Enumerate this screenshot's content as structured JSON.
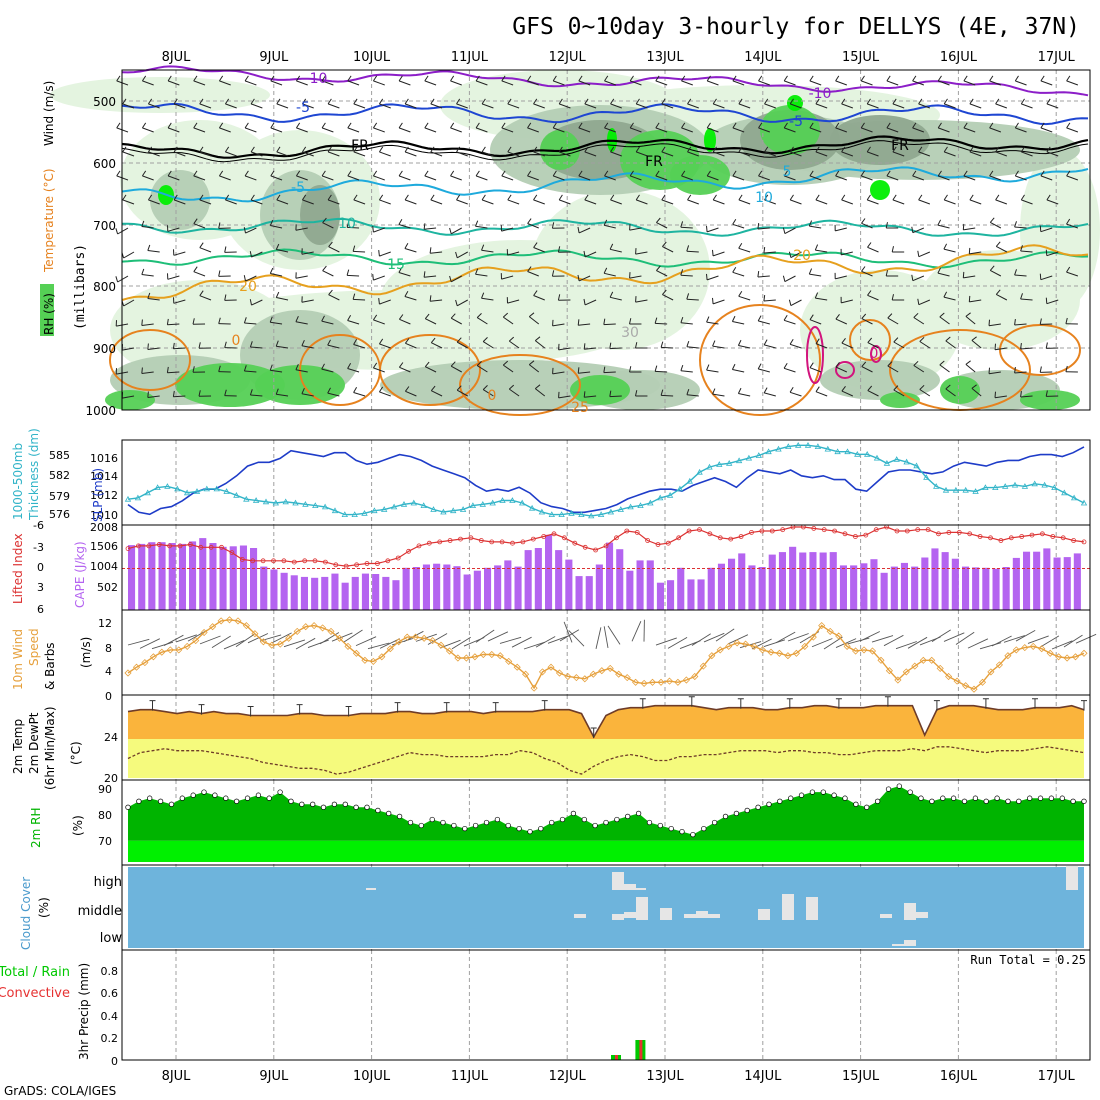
{
  "title": "GFS 0~10day 3-hourly for DELLYS (4E, 37N)",
  "credit": "GrADS: COLA/IGES",
  "date_labels": [
    "8JUL",
    "9JUL",
    "10JUL",
    "11JUL",
    "12JUL",
    "13JUL",
    "14JUL",
    "15JUL",
    "16JUL",
    "17JUL"
  ],
  "colors": {
    "frame": "#000000",
    "grid": "#a0a0a0",
    "rh_light": "#e4f4e0",
    "rh_mid": "#b4ceb4",
    "rh_dark": "#8fa88f",
    "rh_green": "#55d055",
    "rh_bright": "#00ee00",
    "iso_purple": "#8c1ec8",
    "iso_blue": "#1e46d2",
    "iso_fr": "#000000",
    "iso_cyan": "#1eaadc",
    "iso_teal": "#1eb4a0",
    "iso_green": "#1ebe78",
    "iso_orange": "#e6a01e",
    "iso_dark_orange": "#e6821e",
    "iso_magenta": "#d2147d",
    "slp": "#1e3cc8",
    "thickness": "#32b4c8",
    "lifted": "#dc3232",
    "cape": "#b464f0",
    "wind_speed": "#e6a03c",
    "temp_fill": "#fab43c",
    "dew_fill": "#f5fa7d",
    "rh_dark_green": "#00b400",
    "rh_bright_green": "#00f000",
    "cloud_bg": "#6eb4dc",
    "cloud_bar": "#e6e6e6",
    "precip_total": "#00c800",
    "precip_conv": "#e63232"
  },
  "panels": {
    "upper_air": {
      "ylabels": [
        "RH (%)",
        "Temperature (°C)",
        "Wind (m/s)"
      ],
      "ylabel2": "(millibars)",
      "yticks": [
        "500",
        "600",
        "700",
        "800",
        "900",
        "1000"
      ],
      "contour_labels": [
        "-10",
        "-5",
        "FR",
        "-5",
        "10",
        "15",
        "20",
        "0",
        "0",
        "25",
        "30",
        "-10",
        "-5",
        "FR",
        "5",
        "10",
        "20",
        "FR",
        "0"
      ]
    },
    "slp": {
      "ylabel_left": "1000-500mb",
      "ylabel_left2": "Thickness (dm)",
      "ylabel_right": "SLP (mb)",
      "yticks_left": [
        "585",
        "582",
        "579",
        "576"
      ],
      "yticks_right": [
        "1016",
        "1014",
        "1012",
        "1010"
      ]
    },
    "cape": {
      "ylabel_left": "Lifted Index",
      "ylabel_right": "CAPE (J/kg)",
      "yticks_left": [
        "-6",
        "-3",
        "0",
        "3",
        "6"
      ],
      "yticks_right": [
        "2008",
        "1506",
        "1004",
        "502"
      ]
    },
    "wind10": {
      "ylabel_1": "10m Wind",
      "ylabel_2": "Speed",
      "ylabel_3": "& Barbs",
      "ylabel_4": "(m/s)",
      "yticks": [
        "12",
        "8",
        "4",
        "0"
      ]
    },
    "temp2m": {
      "ylabel_1": "2m Temp",
      "ylabel_2": "2m DewPt",
      "ylabel_3": "(6hr Min/Max)",
      "ylabel_4": "(°C)",
      "yticks": [
        "24",
        "20"
      ]
    },
    "rh2m": {
      "ylabel_1": "2m RH",
      "ylabel_2": "(%)",
      "yticks": [
        "90",
        "80",
        "70"
      ]
    },
    "cloud": {
      "ylabel_1": "Cloud Cover",
      "ylabel_2": "(%)",
      "yticks": [
        "high",
        "middle",
        "low"
      ]
    },
    "precip": {
      "ylabel_1": "Total / Rain",
      "ylabel_2": "Convective",
      "ylabel_3": "3hr Precip (mm)",
      "yticks": [
        "0.8",
        "0.6",
        "0.4",
        "0.2",
        "0"
      ],
      "run_total": "Run Total = 0.25"
    }
  },
  "chart_data": [
    {
      "type": "line",
      "title": "SLP (mb)",
      "x_unit": "3-hourly step from 7JUL 12Z",
      "values": [
        1011.2,
        1010.4,
        1010.2,
        1010.8,
        1011.0,
        1011.6,
        1012.4,
        1012.8,
        1012.8,
        1013.4,
        1014.2,
        1015.2,
        1015.6,
        1015.6,
        1016.0,
        1016.8,
        1016.6,
        1016.4,
        1016.2,
        1016.6,
        1016.6,
        1015.8,
        1015.4,
        1015.6,
        1016.0,
        1016.4,
        1016.2,
        1015.8,
        1015.2,
        1014.8,
        1014.4,
        1014.0,
        1013.2,
        1012.6,
        1012.8,
        1012.6,
        1013.0,
        1012.4,
        1011.4,
        1011.0,
        1010.8,
        1010.4,
        1010.4,
        1010.6,
        1010.8,
        1011.2,
        1011.8,
        1012.2,
        1012.6,
        1012.8,
        1012.8,
        1012.6,
        1013.2,
        1013.6,
        1014.0,
        1013.6,
        1013.0,
        1014.0,
        1014.8,
        1014.6,
        1014.4,
        1014.8,
        1014.2,
        1014.0,
        1014.2,
        1013.8,
        1013.8,
        1012.8,
        1012.6,
        1013.6,
        1014.6,
        1014.8,
        1014.8,
        1014.6,
        1014.4,
        1014.6,
        1015.2,
        1015.6,
        1015.4,
        1015.2,
        1015.6,
        1015.8,
        1015.8,
        1016.2,
        1016.4,
        1016.4,
        1016.2,
        1016.6,
        1017.2
      ],
      "ylim": [
        1009.5,
        1017.5
      ]
    },
    {
      "type": "line",
      "title": "1000-500mb Thickness (dm)",
      "values": [
        578.4,
        578.6,
        579.4,
        580.2,
        580.4,
        580.0,
        579.4,
        579.6,
        580.0,
        580.0,
        579.6,
        579.0,
        578.4,
        578.2,
        578.0,
        577.8,
        578.0,
        577.8,
        577.6,
        577.4,
        577.2,
        576.6,
        576.0,
        576.0,
        576.2,
        576.6,
        576.8,
        577.2,
        577.6,
        577.8,
        577.4,
        576.8,
        576.4,
        576.6,
        576.8,
        577.4,
        577.6,
        577.8,
        578.2,
        578.2,
        577.8,
        577.0,
        576.4,
        576.0,
        576.0,
        576.2,
        576.0,
        575.8,
        576.0,
        576.4,
        576.8,
        577.2,
        577.4,
        577.8,
        578.6,
        579.0,
        580.0,
        581.2,
        582.6,
        583.4,
        583.8,
        584.0,
        584.4,
        584.8,
        585.2,
        585.8,
        586.2,
        586.6,
        586.8,
        586.8,
        586.6,
        586.2,
        585.8,
        585.8,
        585.4,
        585.4,
        584.8,
        584.0,
        584.6,
        584.2,
        583.6,
        581.8,
        580.4,
        579.8,
        579.8,
        579.8,
        579.6,
        580.2,
        580.2,
        580.4,
        580.6,
        580.4,
        580.8,
        580.6,
        580.2,
        579.4,
        578.6,
        577.8
      ],
      "ylim": [
        575,
        587
      ]
    },
    {
      "type": "bar",
      "title": "CAPE (J/kg)",
      "values": [
        1570,
        1600,
        1640,
        1640,
        1620,
        1600,
        1660,
        1740,
        1620,
        1530,
        1540,
        1560,
        1500,
        1050,
        980,
        900,
        840,
        800,
        780,
        800,
        880,
        660,
        800,
        880,
        870,
        800,
        720,
        1020,
        1040,
        1100,
        1120,
        1100,
        1060,
        860,
        950,
        1020,
        1080,
        1200,
        1050,
        1450,
        1500,
        1820,
        1450,
        1220,
        820,
        820,
        1100,
        1630,
        1470,
        950,
        1200,
        1200,
        660,
        720,
        1020,
        740,
        740,
        1020,
        1120,
        1240,
        1370,
        1080,
        1040,
        1340,
        1400,
        1530,
        1390,
        1400,
        1390,
        1400,
        1080,
        1080,
        1130,
        1230,
        900,
        1050,
        1140,
        1050,
        1270,
        1490,
        1400,
        1240,
        1050,
        1030,
        1020,
        1000,
        1040,
        1260,
        1410,
        1410,
        1490,
        1270,
        1280,
        1370
      ],
      "ylim": [
        0,
        2008
      ]
    },
    {
      "type": "line",
      "title": "Lifted Index",
      "values": [
        -2.8,
        -3.2,
        -3.2,
        -3.4,
        -3.2,
        -3.2,
        -3.4,
        -3.0,
        -3.0,
        -3.0,
        -2.2,
        -1.2,
        -1.0,
        -1.0,
        -1.0,
        -1.0,
        -0.8,
        -1.0,
        -1.0,
        -0.8,
        -0.4,
        -0.2,
        -0.4,
        -0.6,
        -0.6,
        -1.0,
        -1.4,
        -2.4,
        -3.2,
        -3.6,
        -3.8,
        -4.0,
        -4.2,
        -4.4,
        -4.0,
        -3.8,
        -3.8,
        -3.6,
        -3.8,
        -4.2,
        -4.6,
        -5.0,
        -4.4,
        -3.6,
        -3.0,
        -2.6,
        -3.2,
        -4.4,
        -5.4,
        -5.2,
        -4.0,
        -3.4,
        -3.6,
        -4.4,
        -5.4,
        -5.6,
        -5.0,
        -4.4,
        -4.2,
        -4.6,
        -5.2,
        -5.4,
        -5.4,
        -5.6,
        -6.0,
        -6.0,
        -5.8,
        -5.6,
        -5.4,
        -5.0,
        -4.6,
        -4.8,
        -5.6,
        -6.0,
        -5.4,
        -5.4,
        -5.6,
        -5.6,
        -5.0,
        -5.2,
        -5.2,
        -5.0,
        -4.6,
        -4.4,
        -4.0,
        -4.4,
        -4.6,
        -4.8,
        -5.0,
        -4.6,
        -4.4,
        -4.0,
        -3.8
      ],
      "ylim": [
        6,
        -6
      ]
    },
    {
      "type": "line",
      "title": "10m Wind Speed (m/s)",
      "values": [
        3.8,
        4.8,
        5.6,
        6.6,
        7.4,
        7.8,
        7.8,
        8.4,
        9.4,
        10.8,
        11.8,
        12.8,
        13.0,
        12.8,
        12.0,
        10.6,
        9.2,
        8.6,
        8.8,
        9.8,
        11.0,
        11.8,
        12.0,
        11.6,
        11.0,
        9.8,
        8.4,
        7.2,
        6.0,
        5.8,
        6.6,
        8.0,
        9.2,
        10.0,
        10.0,
        9.8,
        9.4,
        8.6,
        7.6,
        6.4,
        6.4,
        6.6,
        7.0,
        7.0,
        6.8,
        5.8,
        4.8,
        3.6,
        1.2,
        4.0,
        4.8,
        3.8,
        3.2,
        3.0,
        2.8,
        3.6,
        4.2,
        4.6,
        3.6,
        3.0,
        2.2,
        2.0,
        2.2,
        2.2,
        2.4,
        2.2,
        2.6,
        3.2,
        5.0,
        6.8,
        7.8,
        8.4,
        9.0,
        8.8,
        8.4,
        7.8,
        7.4,
        7.2,
        6.8,
        7.2,
        8.4,
        10.0,
        12.0,
        11.0,
        10.2,
        8.4,
        7.6,
        7.8,
        7.6,
        6.0,
        4.2,
        2.6,
        4.0,
        5.0,
        6.0,
        6.0,
        4.6,
        3.2,
        2.4,
        1.6,
        1.0,
        2.2,
        4.0,
        5.2,
        6.8,
        7.8,
        8.2,
        8.4,
        8.0,
        7.2,
        6.6,
        6.4,
        6.6,
        7.2
      ],
      "ylim": [
        0,
        14
      ]
    },
    {
      "type": "area",
      "title": "2m Temp (°C)",
      "values": [
        26.8,
        27.0,
        27.0,
        26.8,
        26.6,
        26.8,
        26.6,
        26.8,
        26.6,
        26.6,
        26.4,
        26.4,
        26.4,
        26.4,
        26.6,
        26.6,
        26.4,
        26.4,
        26.4,
        26.6,
        26.6,
        26.6,
        26.8,
        26.8,
        26.6,
        26.6,
        26.8,
        26.8,
        26.8,
        26.6,
        26.8,
        26.8,
        26.8,
        26.8,
        27.0,
        27.0,
        27.0,
        26.6,
        24.2,
        26.4,
        27.0,
        27.2,
        27.2,
        27.4,
        27.4,
        27.4,
        27.4,
        27.2,
        27.0,
        27.2,
        27.2,
        27.2,
        27.0,
        27.0,
        27.2,
        27.2,
        27.4,
        27.4,
        27.2,
        27.2,
        27.2,
        27.4,
        27.4,
        27.4,
        27.4,
        24.4,
        27.0,
        27.4,
        27.4,
        27.4,
        27.2,
        27.0,
        27.0,
        27.0,
        27.2,
        27.2,
        27.2,
        27.4,
        27.0
      ],
      "ylim": [
        19.8,
        28.5
      ]
    },
    {
      "type": "line",
      "title": "2m DewPt (°C)",
      "values": [
        22.0,
        22.6,
        22.8,
        23.0,
        22.8,
        22.8,
        22.8,
        22.6,
        22.4,
        22.2,
        22.0,
        21.6,
        21.4,
        21.2,
        21.0,
        21.0,
        20.8,
        20.4,
        20.6,
        21.0,
        21.4,
        21.8,
        22.2,
        22.6,
        22.4,
        22.4,
        22.2,
        22.2,
        22.2,
        22.2,
        22.4,
        22.4,
        22.8,
        22.6,
        22.0,
        21.6,
        20.8,
        20.4,
        21.2,
        21.8,
        22.2,
        22.4,
        22.2,
        21.8,
        21.8,
        22.2,
        22.2,
        22.4,
        22.4,
        22.6,
        22.8,
        22.8,
        22.8,
        22.6,
        22.8,
        22.8,
        22.6,
        22.6,
        22.4,
        22.4,
        22.6,
        22.8,
        22.8,
        22.8,
        23.0,
        22.8,
        23.2,
        23.2,
        23.0,
        22.8,
        22.6,
        22.8,
        22.8,
        22.8,
        23.0,
        23.2,
        23.0,
        22.8,
        22.6
      ],
      "ylim": [
        19.8,
        28.5
      ]
    },
    {
      "type": "area",
      "title": "2m RH (%)",
      "values": [
        81,
        83,
        84,
        83,
        82,
        84,
        85,
        86,
        85,
        84,
        83,
        84,
        85,
        84,
        86,
        83,
        82,
        82,
        81,
        82,
        82,
        81,
        81,
        80,
        79,
        78,
        76,
        75,
        77,
        76,
        75,
        74,
        75,
        76,
        77,
        75,
        74,
        73,
        74,
        76,
        77,
        79,
        77,
        75,
        76,
        77,
        78,
        79,
        76,
        75,
        74,
        73,
        72,
        74,
        76,
        78,
        79,
        80,
        81,
        82,
        83,
        84,
        85,
        86,
        86,
        85,
        84,
        82,
        81,
        83,
        87,
        88,
        86,
        84,
        83,
        84,
        84,
        83,
        84,
        83,
        84,
        83,
        83,
        84,
        84,
        84,
        84,
        83,
        83
      ],
      "ylim": [
        62,
        90
      ]
    },
    {
      "type": "bar",
      "title": "3hr Precip (mm)",
      "x_unit": "3-hourly step",
      "bars": [
        {
          "step": 40,
          "total": 0.05,
          "convective": 0.05
        },
        {
          "step": 42,
          "total": 0.2,
          "convective": 0.2
        }
      ],
      "ylim": [
        0,
        1.0
      ]
    }
  ]
}
